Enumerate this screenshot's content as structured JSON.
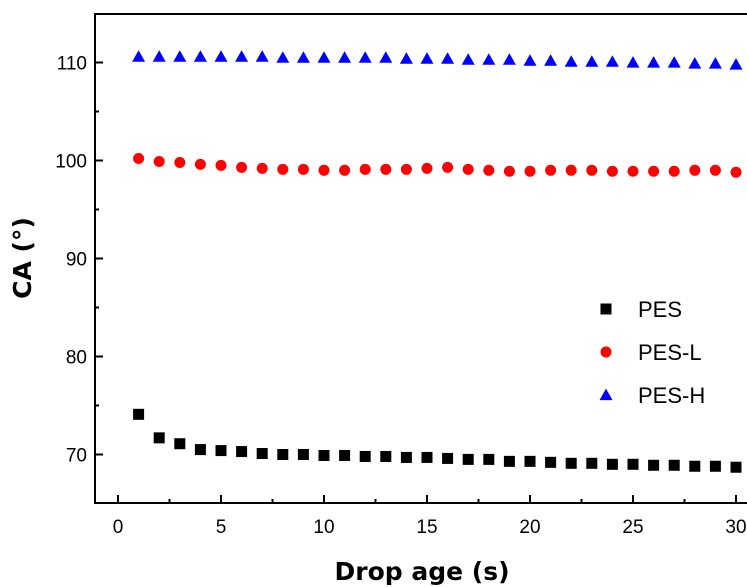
{
  "chart_data": {
    "type": "scatter",
    "title": "",
    "xlabel": "Drop age (s)",
    "ylabel": "CA (°)",
    "xlim": [
      -1,
      30.5
    ],
    "ylim": [
      65,
      115
    ],
    "xticks": [
      "0",
      "5",
      "10",
      "15",
      "20",
      "25",
      "30"
    ],
    "yticks": [
      "70",
      "80",
      "90",
      "100",
      "110"
    ],
    "grid": false,
    "legend_position": "right-middle",
    "x": [
      1,
      2,
      3,
      4,
      5,
      6,
      7,
      8,
      9,
      10,
      11,
      12,
      13,
      14,
      15,
      16,
      17,
      18,
      19,
      20,
      21,
      22,
      23,
      24,
      25,
      26,
      27,
      28,
      29,
      30
    ],
    "series": [
      {
        "name": "PES",
        "marker": "square",
        "color": "#000000",
        "values": [
          74.1,
          71.7,
          71.1,
          70.5,
          70.4,
          70.3,
          70.1,
          70.0,
          70.0,
          69.9,
          69.9,
          69.8,
          69.8,
          69.7,
          69.7,
          69.6,
          69.5,
          69.5,
          69.3,
          69.3,
          69.2,
          69.1,
          69.1,
          69.0,
          69.0,
          68.9,
          68.9,
          68.8,
          68.8,
          68.7
        ]
      },
      {
        "name": "PES-L",
        "marker": "circle",
        "color": "#ff0000",
        "values": [
          100.2,
          99.9,
          99.8,
          99.6,
          99.5,
          99.3,
          99.2,
          99.1,
          99.1,
          99.0,
          99.0,
          99.1,
          99.1,
          99.1,
          99.2,
          99.3,
          99.1,
          99.0,
          98.9,
          98.9,
          99.0,
          99.0,
          99.0,
          98.9,
          98.9,
          98.9,
          98.9,
          99.0,
          99.0,
          98.8
        ]
      },
      {
        "name": "PES-H",
        "marker": "triangle",
        "color": "#0000ff",
        "values": [
          110.6,
          110.6,
          110.6,
          110.6,
          110.6,
          110.6,
          110.6,
          110.5,
          110.5,
          110.5,
          110.5,
          110.5,
          110.5,
          110.4,
          110.4,
          110.4,
          110.3,
          110.3,
          110.3,
          110.2,
          110.2,
          110.1,
          110.1,
          110.1,
          110.0,
          110.0,
          110.0,
          109.9,
          109.9,
          109.8
        ]
      }
    ]
  }
}
